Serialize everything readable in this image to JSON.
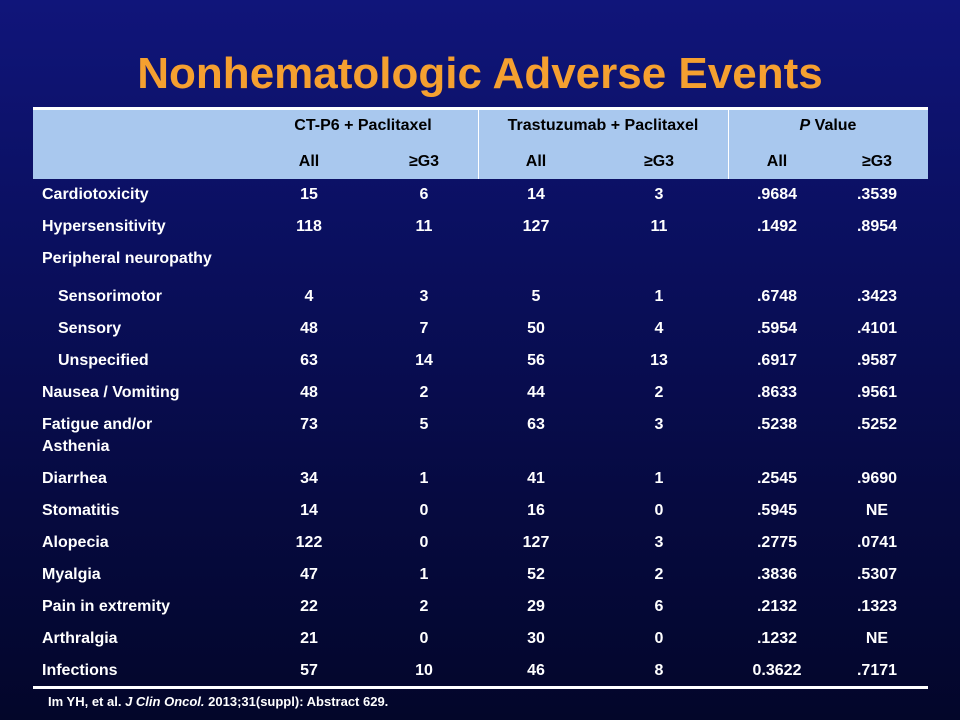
{
  "slide": {
    "title": "Nonhematologic Adverse Events",
    "citation_pre": "Im YH, et al.  ",
    "citation_journal": "J Clin Oncol.",
    "citation_post": " 2013;31(suppl): Abstract 629."
  },
  "table": {
    "group_headers": [
      "CT-P6 + Paclitaxel",
      "Trastuzumab + Paclitaxel",
      "P Value"
    ],
    "group_header_p_italic": "P",
    "group_header_p_rest": " Value",
    "sub_headers": [
      "All",
      "≥G3",
      "All",
      "≥G3",
      "All",
      "≥G3"
    ],
    "rows": [
      {
        "label": "Cardiotoxicity",
        "values": [
          "15",
          "6",
          "14",
          "3",
          ".9684",
          ".3539"
        ]
      },
      {
        "label": "Hypersensitivity",
        "values": [
          "118",
          "11",
          "127",
          "11",
          ".1492",
          ".8954"
        ]
      },
      {
        "label": "Peripheral neuropathy",
        "values": [
          "",
          "",
          "",
          "",
          "",
          ""
        ]
      },
      {
        "label": "Sensorimotor",
        "values": [
          "4",
          "3",
          "5",
          "1",
          ".6748",
          ".3423"
        ]
      },
      {
        "label": "Sensory",
        "values": [
          "48",
          "7",
          "50",
          "4",
          ".5954",
          ".4101"
        ]
      },
      {
        "label": "Unspecified",
        "values": [
          "63",
          "14",
          "56",
          "13",
          ".6917",
          ".9587"
        ]
      },
      {
        "label": "Nausea / Vomiting",
        "values": [
          "48",
          "2",
          "44",
          "2",
          ".8633",
          ".9561"
        ]
      },
      {
        "label": "Fatigue and/or",
        "label2": "Asthenia",
        "values": [
          "73",
          "5",
          "63",
          "3",
          ".5238",
          ".5252"
        ]
      },
      {
        "label": "Diarrhea",
        "values": [
          "34",
          "1",
          "41",
          "1",
          ".2545",
          ".9690"
        ]
      },
      {
        "label": "Stomatitis",
        "values": [
          "14",
          "0",
          "16",
          "0",
          ".5945",
          "NE"
        ]
      },
      {
        "label": "Alopecia",
        "values": [
          "122",
          "0",
          "127",
          "3",
          ".2775",
          ".0741"
        ]
      },
      {
        "label": "Myalgia",
        "values": [
          "47",
          "1",
          "52",
          "2",
          ".3836",
          ".5307"
        ]
      },
      {
        "label": "Pain in extremity",
        "values": [
          "22",
          "2",
          "29",
          "6",
          ".2132",
          ".1323"
        ]
      },
      {
        "label": "Arthralgia",
        "values": [
          "21",
          "0",
          "30",
          "0",
          ".1232",
          "NE"
        ]
      },
      {
        "label": "Infections",
        "values": [
          "57",
          "10",
          "46",
          "8",
          "0.3622",
          ".7171"
        ]
      }
    ]
  }
}
